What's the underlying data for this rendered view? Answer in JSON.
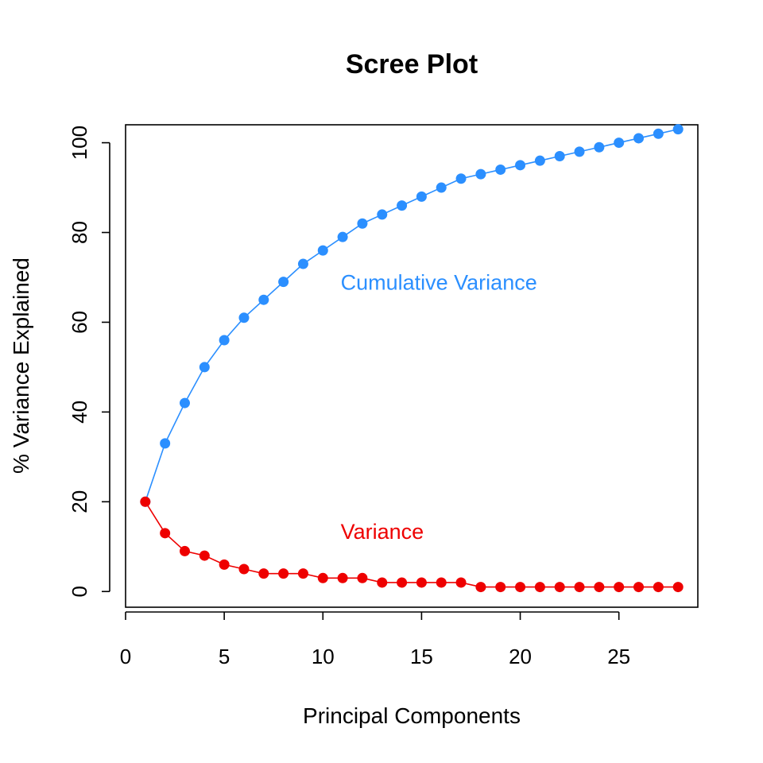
{
  "chart_data": {
    "type": "line",
    "title": "Scree Plot",
    "xlabel": "Principal Components",
    "ylabel": "% Variance Explained",
    "xlim": [
      0,
      29
    ],
    "ylim": [
      -3.5,
      104
    ],
    "xticks": [
      0,
      5,
      10,
      15,
      20,
      25
    ],
    "yticks": [
      0,
      20,
      40,
      60,
      80,
      100
    ],
    "grid": false,
    "x": [
      1,
      2,
      3,
      4,
      5,
      6,
      7,
      8,
      9,
      10,
      11,
      12,
      13,
      14,
      15,
      16,
      17,
      18,
      19,
      20,
      21,
      22,
      23,
      24,
      25,
      26,
      27,
      28
    ],
    "series": [
      {
        "name": "Variance",
        "color": "#ee0000",
        "values": [
          20,
          13,
          9,
          8,
          6,
          5,
          4,
          4,
          4,
          3,
          3,
          3,
          2,
          2,
          2,
          2,
          2,
          1,
          1,
          1,
          1,
          1,
          1,
          1,
          1,
          1,
          1,
          1
        ]
      },
      {
        "name": "Cumulative Variance",
        "color": "#2b8fff",
        "values": [
          20,
          33,
          42,
          50,
          56,
          61,
          65,
          69,
          73,
          76,
          79,
          82,
          84,
          86,
          88,
          90,
          92,
          93,
          94,
          95,
          96,
          97,
          98,
          99,
          100,
          101,
          102,
          103
        ]
      }
    ],
    "annotations": [
      {
        "text": "Cumulative Variance",
        "x": 10.9,
        "y": 69,
        "color": "#2b8fff"
      },
      {
        "text": "Variance",
        "x": 10.9,
        "y": 13.5,
        "color": "#ee0000"
      }
    ]
  }
}
